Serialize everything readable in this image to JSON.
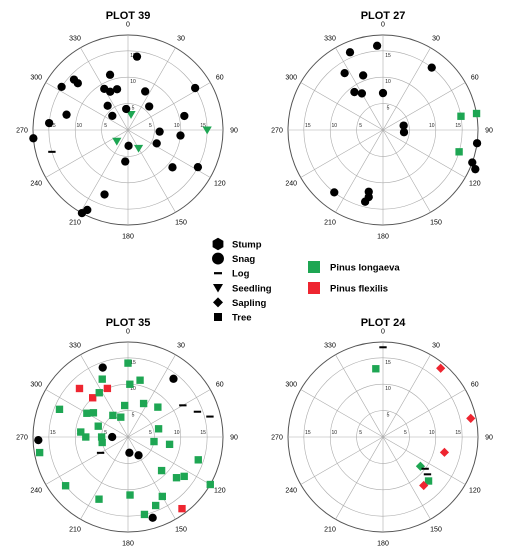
{
  "colors": {
    "none": "#000000",
    "Pinus longaeva": "#1ea653",
    "Pinus flexilis": "#ee2530"
  },
  "marker_legend": [
    "Stump",
    "Snag",
    "Log",
    "Seedling",
    "Sapling",
    "Tree"
  ],
  "species_legend": [
    {
      "name": "Pinus longaeva",
      "color": "#1ea653"
    },
    {
      "name": "Pinus flexilis",
      "color": "#ee2530"
    }
  ],
  "chart_data": [
    {
      "type": "scatter",
      "coordinate_system": "polar",
      "title": "PLOT 39",
      "angle_ticks": [
        "0",
        "30",
        "60",
        "90",
        "120",
        "150",
        "180",
        "210",
        "240",
        "270",
        "300",
        "330"
      ],
      "radius_ticks": [
        "5",
        "10",
        "15"
      ],
      "radius_max": 18,
      "grid": true,
      "points": [
        {
          "angle": 7,
          "r": 14,
          "marker": "Snag",
          "species": "none"
        },
        {
          "angle": 11,
          "r": 3,
          "marker": "Seedling",
          "species": "Pinus longaeva"
        },
        {
          "angle": 24,
          "r": 8,
          "marker": "Snag",
          "species": "none"
        },
        {
          "angle": 42,
          "r": 6,
          "marker": "Snag",
          "species": "none"
        },
        {
          "angle": 58,
          "r": 15,
          "marker": "Snag",
          "species": "none"
        },
        {
          "angle": 76,
          "r": 11,
          "marker": "Snag",
          "species": "none"
        },
        {
          "angle": 93,
          "r": 6,
          "marker": "Snag",
          "species": "none"
        },
        {
          "angle": 96,
          "r": 10,
          "marker": "Snag",
          "species": "none"
        },
        {
          "angle": 90,
          "r": 15,
          "marker": "Seedling",
          "species": "Pinus longaeva"
        },
        {
          "angle": 115,
          "r": 6,
          "marker": "Snag",
          "species": "none"
        },
        {
          "angle": 130,
          "r": 11,
          "marker": "Snag",
          "species": "none"
        },
        {
          "angle": 118,
          "r": 15,
          "marker": "Snag",
          "species": "none"
        },
        {
          "angle": 150,
          "r": 4,
          "marker": "Seedling",
          "species": "Pinus longaeva"
        },
        {
          "angle": 178,
          "r": 3,
          "marker": "Snag",
          "species": "none"
        },
        {
          "angle": 185,
          "r": 6,
          "marker": "Snag",
          "species": "none"
        },
        {
          "angle": 200,
          "r": 13,
          "marker": "Snag",
          "species": "none"
        },
        {
          "angle": 207,
          "r": 17,
          "marker": "Snag",
          "species": "none"
        },
        {
          "angle": 209,
          "r": 18,
          "marker": "Snag",
          "species": "none"
        },
        {
          "angle": 225,
          "r": 3,
          "marker": "Seedling",
          "species": "Pinus longaeva"
        },
        {
          "angle": 254,
          "r": 15,
          "marker": "Log",
          "species": "none"
        },
        {
          "angle": 265,
          "r": 18,
          "marker": "Snag",
          "species": "none"
        },
        {
          "angle": 275,
          "r": 15,
          "marker": "Snag",
          "species": "none"
        },
        {
          "angle": 284,
          "r": 12,
          "marker": "Snag",
          "species": "none"
        },
        {
          "angle": 303,
          "r": 15,
          "marker": "Snag",
          "species": "none"
        },
        {
          "angle": 313,
          "r": 13,
          "marker": "Snag",
          "species": "none"
        },
        {
          "angle": 313,
          "r": 14,
          "marker": "Snag",
          "species": "none"
        },
        {
          "angle": 335,
          "r": 8,
          "marker": "Snag",
          "species": "none"
        },
        {
          "angle": 320,
          "r": 6,
          "marker": "Snag",
          "species": "none"
        },
        {
          "angle": 330,
          "r": 9,
          "marker": "Snag",
          "species": "none"
        },
        {
          "angle": 312,
          "r": 4,
          "marker": "Snag",
          "species": "none"
        },
        {
          "angle": 342,
          "r": 11,
          "marker": "Snag",
          "species": "none"
        },
        {
          "angle": 355,
          "r": 4,
          "marker": "Snag",
          "species": "none"
        },
        {
          "angle": 345,
          "r": 8,
          "marker": "Snag",
          "species": "none"
        }
      ]
    },
    {
      "type": "scatter",
      "coordinate_system": "polar",
      "title": "PLOT 27",
      "angle_ticks": [
        "0",
        "30",
        "60",
        "90",
        "120",
        "150",
        "180",
        "210",
        "240",
        "270",
        "300",
        "330"
      ],
      "radius_ticks": [
        "5",
        "10",
        "15"
      ],
      "radius_max": 18,
      "grid": true,
      "points": [
        {
          "angle": 356,
          "r": 16,
          "marker": "Snag",
          "species": "none"
        },
        {
          "angle": 0,
          "r": 7,
          "marker": "Snag",
          "species": "none"
        },
        {
          "angle": 337,
          "r": 16,
          "marker": "Snag",
          "species": "none"
        },
        {
          "angle": 340,
          "r": 11,
          "marker": "Snag",
          "species": "none"
        },
        {
          "angle": 330,
          "r": 8,
          "marker": "Snag",
          "species": "none"
        },
        {
          "angle": 323,
          "r": 9,
          "marker": "Snag",
          "species": "none"
        },
        {
          "angle": 326,
          "r": 13,
          "marker": "Snag",
          "species": "none"
        },
        {
          "angle": 38,
          "r": 15,
          "marker": "Snag",
          "species": "none"
        },
        {
          "angle": 78,
          "r": 4,
          "marker": "Snag",
          "species": "none"
        },
        {
          "angle": 96,
          "r": 4,
          "marker": "Snag",
          "species": "none"
        },
        {
          "angle": 80,
          "r": 15,
          "marker": "Tree",
          "species": "Pinus longaeva"
        },
        {
          "angle": 80,
          "r": 18,
          "marker": "Tree",
          "species": "Pinus longaeva"
        },
        {
          "angle": 98,
          "r": 18,
          "marker": "Snag",
          "species": "none"
        },
        {
          "angle": 106,
          "r": 15,
          "marker": "Tree",
          "species": "Pinus longaeva"
        },
        {
          "angle": 110,
          "r": 18,
          "marker": "Snag",
          "species": "none"
        },
        {
          "angle": 113,
          "r": 19,
          "marker": "Snag",
          "species": "none"
        },
        {
          "angle": 193,
          "r": 12,
          "marker": "Snag",
          "species": "none"
        },
        {
          "angle": 192,
          "r": 13,
          "marker": "Snag",
          "species": "none"
        },
        {
          "angle": 194,
          "r": 14,
          "marker": "Snag",
          "species": "none"
        },
        {
          "angle": 218,
          "r": 15,
          "marker": "Snag",
          "species": "none"
        }
      ]
    },
    {
      "type": "scatter",
      "coordinate_system": "polar",
      "title": "PLOT 35",
      "angle_ticks": [
        "0",
        "30",
        "60",
        "90",
        "120",
        "150",
        "180",
        "210",
        "240",
        "270",
        "300",
        "330"
      ],
      "radius_ticks": [
        "5",
        "10",
        "15"
      ],
      "radius_max": 18,
      "grid": true,
      "points": [
        {
          "angle": 0,
          "r": 14,
          "marker": "Tree",
          "species": "Pinus longaeva"
        },
        {
          "angle": 2,
          "r": 10,
          "marker": "Tree",
          "species": "Pinus longaeva"
        },
        {
          "angle": 354,
          "r": 6,
          "marker": "Tree",
          "species": "Pinus longaeva"
        },
        {
          "angle": 12,
          "r": 11,
          "marker": "Tree",
          "species": "Pinus longaeva"
        },
        {
          "angle": 38,
          "r": 14,
          "marker": "Snag",
          "species": "none"
        },
        {
          "angle": 25,
          "r": 7,
          "marker": "Tree",
          "species": "Pinus longaeva"
        },
        {
          "angle": 45,
          "r": 8,
          "marker": "Tree",
          "species": "Pinus longaeva"
        },
        {
          "angle": 60,
          "r": 12,
          "marker": "Log",
          "species": "none"
        },
        {
          "angle": 70,
          "r": 14,
          "marker": "Log",
          "species": "none"
        },
        {
          "angle": 76,
          "r": 16,
          "marker": "Log",
          "species": "none"
        },
        {
          "angle": 75,
          "r": 6,
          "marker": "Tree",
          "species": "Pinus longaeva"
        },
        {
          "angle": 100,
          "r": 8,
          "marker": "Tree",
          "species": "Pinus longaeva"
        },
        {
          "angle": 108,
          "r": 14,
          "marker": "Tree",
          "species": "Pinus longaeva"
        },
        {
          "angle": 120,
          "r": 18,
          "marker": "Tree",
          "species": "Pinus longaeva"
        },
        {
          "angle": 100,
          "r": 5,
          "marker": "Tree",
          "species": "Pinus longaeva"
        },
        {
          "angle": 135,
          "r": 9,
          "marker": "Tree",
          "species": "Pinus longaeva"
        },
        {
          "angle": 130,
          "r": 12,
          "marker": "Tree",
          "species": "Pinus longaeva"
        },
        {
          "angle": 125,
          "r": 13,
          "marker": "Tree",
          "species": "Pinus longaeva"
        },
        {
          "angle": 150,
          "r": 13,
          "marker": "Tree",
          "species": "Pinus longaeva"
        },
        {
          "angle": 158,
          "r": 14,
          "marker": "Tree",
          "species": "Pinus longaeva"
        },
        {
          "angle": 143,
          "r": 17,
          "marker": "Tree",
          "species": "Pinus flexilis"
        },
        {
          "angle": 163,
          "r": 16,
          "marker": "Snag",
          "species": "none"
        },
        {
          "angle": 168,
          "r": 15,
          "marker": "Tree",
          "species": "Pinus longaeva"
        },
        {
          "angle": 178,
          "r": 11,
          "marker": "Tree",
          "species": "Pinus longaeva"
        },
        {
          "angle": 150,
          "r": 4,
          "marker": "Snag",
          "species": "none"
        },
        {
          "angle": 205,
          "r": 13,
          "marker": "Tree",
          "species": "Pinus longaeva"
        },
        {
          "angle": 175,
          "r": 3,
          "marker": "Snag",
          "species": "none"
        },
        {
          "angle": 232,
          "r": 15,
          "marker": "Tree",
          "species": "Pinus longaeva"
        },
        {
          "angle": 268,
          "r": 17,
          "marker": "Snag",
          "species": "none"
        },
        {
          "angle": 260,
          "r": 17,
          "marker": "Tree",
          "species": "Pinus longaeva"
        },
        {
          "angle": 270,
          "r": 8,
          "marker": "Tree",
          "species": "Pinus longaeva"
        },
        {
          "angle": 276,
          "r": 9,
          "marker": "Tree",
          "species": "Pinus longaeva"
        },
        {
          "angle": 292,
          "r": 14,
          "marker": "Tree",
          "species": "Pinus longaeva"
        },
        {
          "angle": 300,
          "r": 9,
          "marker": "Tree",
          "species": "Pinus longaeva"
        },
        {
          "angle": 305,
          "r": 8,
          "marker": "Tree",
          "species": "Pinus longaeva"
        },
        {
          "angle": 318,
          "r": 10,
          "marker": "Tree",
          "species": "Pinus flexilis"
        },
        {
          "angle": 327,
          "r": 10,
          "marker": "Tree",
          "species": "Pinus longaeva"
        },
        {
          "angle": 336,
          "r": 12,
          "marker": "Tree",
          "species": "Pinus longaeva"
        },
        {
          "angle": 337,
          "r": 10,
          "marker": "Tree",
          "species": "Pinus flexilis"
        },
        {
          "angle": 340,
          "r": 14,
          "marker": "Snag",
          "species": "none"
        },
        {
          "angle": 325,
          "r": 5,
          "marker": "Tree",
          "species": "Pinus longaeva"
        },
        {
          "angle": 340,
          "r": 4,
          "marker": "Tree",
          "species": "Pinus longaeva"
        },
        {
          "angle": 290,
          "r": 6,
          "marker": "Tree",
          "species": "Pinus longaeva"
        },
        {
          "angle": 240,
          "r": 6,
          "marker": "Log",
          "species": "none"
        },
        {
          "angle": 270,
          "r": 3,
          "marker": "Snag",
          "species": "none"
        },
        {
          "angle": 315,
          "r": 13,
          "marker": "Tree",
          "species": "Pinus flexilis"
        },
        {
          "angle": 270,
          "r": 5,
          "marker": "Tree",
          "species": "Pinus longaeva"
        },
        {
          "angle": 258,
          "r": 5,
          "marker": "Tree",
          "species": "Pinus longaeva"
        }
      ]
    },
    {
      "type": "scatter",
      "coordinate_system": "polar",
      "title": "PLOT 24",
      "angle_ticks": [
        "0",
        "30",
        "60",
        "90",
        "120",
        "150",
        "180",
        "210",
        "240",
        "270",
        "300",
        "330"
      ],
      "radius_ticks": [
        "5",
        "10",
        "15"
      ],
      "radius_max": 18,
      "grid": true,
      "points": [
        {
          "angle": 0,
          "r": 17,
          "marker": "Log",
          "species": "none"
        },
        {
          "angle": 354,
          "r": 13,
          "marker": "Tree",
          "species": "Pinus longaeva"
        },
        {
          "angle": 40,
          "r": 17,
          "marker": "Sapling",
          "species": "Pinus flexilis"
        },
        {
          "angle": 78,
          "r": 17,
          "marker": "Sapling",
          "species": "Pinus flexilis"
        },
        {
          "angle": 104,
          "r": 12,
          "marker": "Sapling",
          "species": "Pinus flexilis"
        },
        {
          "angle": 128,
          "r": 9,
          "marker": "Sapling",
          "species": "Pinus longaeva"
        },
        {
          "angle": 127,
          "r": 10,
          "marker": "Log",
          "species": "none"
        },
        {
          "angle": 130,
          "r": 11,
          "marker": "Log",
          "species": "none"
        },
        {
          "angle": 134,
          "r": 12,
          "marker": "Tree",
          "species": "Pinus longaeva"
        },
        {
          "angle": 140,
          "r": 12,
          "marker": "Sapling",
          "species": "Pinus flexilis"
        }
      ]
    }
  ]
}
